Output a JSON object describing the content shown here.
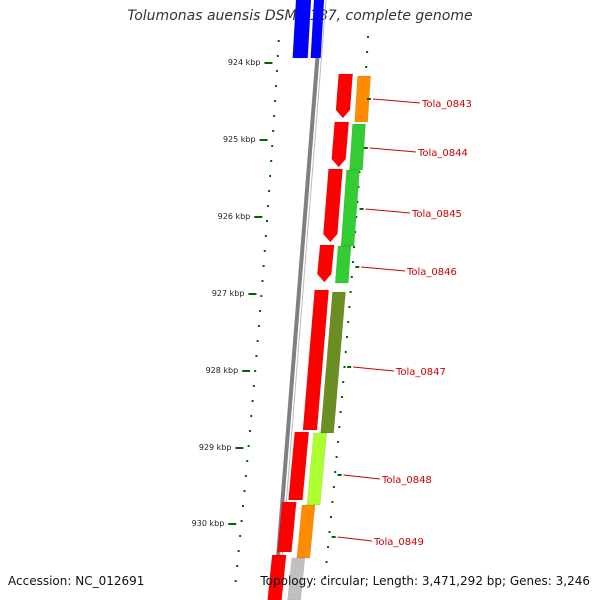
{
  "title": "Tolumonas auensis DSM 9187, complete genome",
  "footer": {
    "accession": "Accession: NC_012691",
    "summary": "Topology: circular; Length: 3,471,292 bp; Genes: 3,246"
  },
  "scale_labels": [
    "924 kbp",
    "925 kbp",
    "926 kbp",
    "927 kbp",
    "928 kbp",
    "929 kbp",
    "930 kbp"
  ],
  "genes": [
    {
      "label": "Tola_0843",
      "color": "#ff8c00"
    },
    {
      "label": "Tola_0844",
      "color": "#33cc33"
    },
    {
      "label": "Tola_0845",
      "color": "#33cc33"
    },
    {
      "label": "Tola_0846",
      "color": "#33cc33"
    },
    {
      "label": "Tola_0847",
      "color": "#6b8e23"
    },
    {
      "label": "Tola_0848",
      "color": "#adff2f"
    },
    {
      "label": "Tola_0849",
      "color": "#ff8c00"
    }
  ],
  "colors": {
    "backbone": "#808080",
    "cds": "#ff0000",
    "top_feature": "#0000ff",
    "tick": "#006400",
    "label": "#cc0000",
    "grey_feature": "#c0c0c0"
  }
}
